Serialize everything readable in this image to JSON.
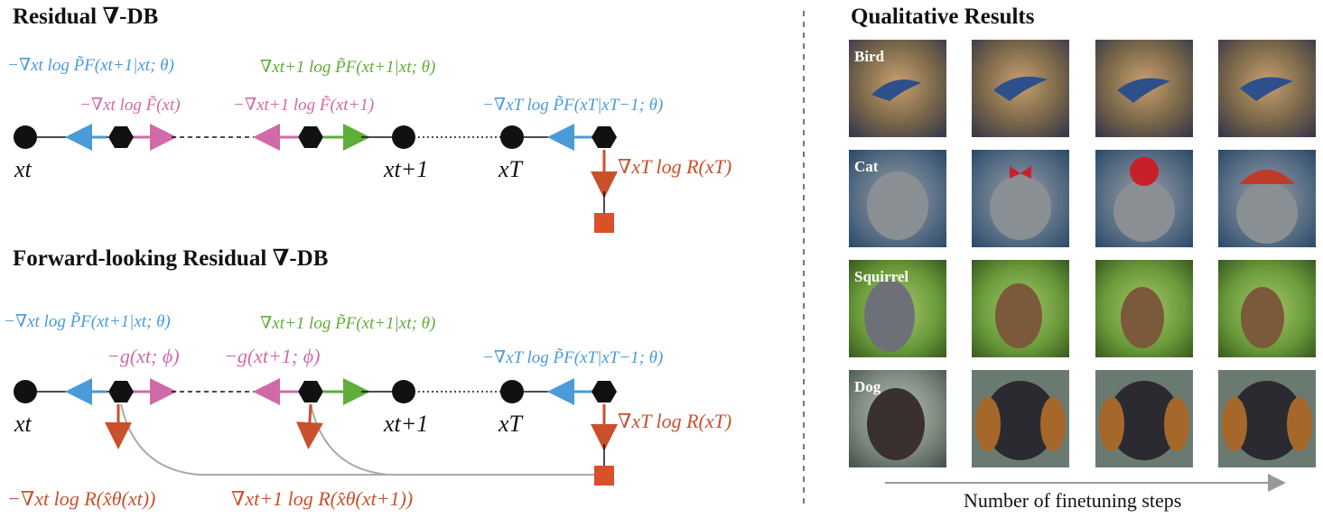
{
  "left_panel": {
    "top_title": "Residual ∇-DB",
    "bottom_title": "Forward-looking Residual ∇-DB",
    "top_terms": {
      "blue_left": "−∇xt log P̃F(xt+1|xt; θ)",
      "pink_left": "−∇xt log F̃(xt)",
      "green_mid": "∇xt+1 log P̃F(xt+1|xt; θ)",
      "pink_mid": "−∇xt+1 log F̃(xt+1)",
      "blue_right": "−∇xT log P̃F(xT|xT−1; θ)",
      "red_reward": "∇xT log R(xT)"
    },
    "bottom_terms": {
      "blue_left": "−∇xt log P̃F(xt+1|xt; θ)",
      "pink_left": "−g(xt; ϕ)",
      "green_mid": "∇xt+1 log P̃F(xt+1|xt; θ)",
      "pink_mid": "−g(xt+1; ϕ)",
      "blue_right": "−∇xT log P̃F(xT|xT−1; θ)",
      "red_reward": "∇xT log R(xT)",
      "red_bottom_left": "−∇xt log R(x̂θ(xt))",
      "red_bottom_mid": "∇xt+1 log R(x̂θ(xt+1))"
    },
    "node_labels": {
      "xt": "xt",
      "xt1": "xt+1",
      "xT": "xT"
    },
    "colors": {
      "blue": "#4a9bd8",
      "pink": "#d06aa8",
      "green": "#5fae3a",
      "red": "#c9502c",
      "node": "#111111"
    }
  },
  "right_panel": {
    "title": "Qualitative Results",
    "rows": [
      {
        "label": "Bird"
      },
      {
        "label": "Cat"
      },
      {
        "label": "Squirrel"
      },
      {
        "label": "Dog"
      }
    ],
    "x_axis_label": "Number of finetuning steps"
  }
}
